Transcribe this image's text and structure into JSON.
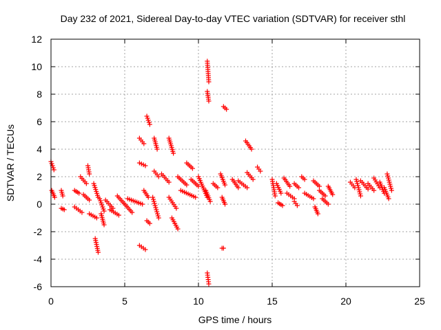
{
  "chart_data": {
    "type": "scatter",
    "title": "Day 232 of 2021, Sidereal Day-to-day VTEC variation (SDTVAR) for receiver sthl",
    "xlabel": "GPS time / hours",
    "ylabel": "SDTVAR / TECUs",
    "xlim": [
      0,
      25
    ],
    "ylim": [
      -6,
      12
    ],
    "xticks": [
      0,
      5,
      10,
      15,
      20,
      25
    ],
    "yticks": [
      -6,
      -4,
      -2,
      0,
      2,
      4,
      6,
      8,
      10,
      12
    ],
    "grid": true,
    "marker": "+",
    "color": "#ff0000",
    "segments": [
      [
        0.0,
        0.2,
        3.1,
        2.5
      ],
      [
        0.05,
        0.25,
        1.0,
        0.5
      ],
      [
        0.7,
        0.8,
        1.0,
        0.6
      ],
      [
        0.7,
        0.9,
        -0.3,
        -0.4
      ],
      [
        1.6,
        1.9,
        1.0,
        0.8
      ],
      [
        1.6,
        2.1,
        -0.2,
        -0.6
      ],
      [
        2.0,
        2.4,
        2.0,
        1.5
      ],
      [
        2.5,
        2.6,
        2.8,
        2.2
      ],
      [
        2.2,
        2.6,
        0.7,
        0.3
      ],
      [
        2.6,
        3.1,
        -0.7,
        -1.0
      ],
      [
        3.0,
        3.2,
        -2.5,
        -3.5
      ],
      [
        2.9,
        3.2,
        1.5,
        0.5
      ],
      [
        3.3,
        3.6,
        0.4,
        -0.5
      ],
      [
        3.4,
        3.6,
        -0.7,
        -1.5
      ],
      [
        3.7,
        4.2,
        0.3,
        -0.3
      ],
      [
        4.0,
        4.6,
        -0.4,
        -0.8
      ],
      [
        4.5,
        5.5,
        0.6,
        -0.6
      ],
      [
        5.2,
        6.2,
        0.4,
        0.0
      ],
      [
        6.0,
        6.3,
        4.8,
        4.4
      ],
      [
        6.0,
        6.4,
        3.0,
        2.8
      ],
      [
        6.0,
        6.4,
        -3.0,
        -3.3
      ],
      [
        6.3,
        6.6,
        1.0,
        0.5
      ],
      [
        6.5,
        6.7,
        6.4,
        5.8
      ],
      [
        6.5,
        6.7,
        -1.2,
        -1.4
      ],
      [
        7.0,
        7.2,
        4.8,
        4.0
      ],
      [
        7.0,
        7.3,
        2.4,
        2.0
      ],
      [
        6.9,
        7.3,
        0.5,
        -1.0
      ],
      [
        7.5,
        8.0,
        2.2,
        1.6
      ],
      [
        8.0,
        8.3,
        4.8,
        3.7
      ],
      [
        8.0,
        8.5,
        0.5,
        -0.3
      ],
      [
        8.2,
        8.6,
        -1.0,
        -1.8
      ],
      [
        8.6,
        9.2,
        2.0,
        1.4
      ],
      [
        9.2,
        9.6,
        3.0,
        2.6
      ],
      [
        8.8,
        9.8,
        1.0,
        0.5
      ],
      [
        9.5,
        10.0,
        1.8,
        1.3
      ],
      [
        10.0,
        10.6,
        2.0,
        0.5
      ],
      [
        10.6,
        10.7,
        10.4,
        8.9
      ],
      [
        10.6,
        10.7,
        8.2,
        7.5
      ],
      [
        10.6,
        10.7,
        -5.0,
        -5.8
      ],
      [
        10.5,
        10.8,
        1.0,
        0.2
      ],
      [
        11.0,
        11.3,
        1.5,
        1.2
      ],
      [
        11.5,
        11.8,
        2.2,
        1.4
      ],
      [
        11.6,
        11.8,
        0.5,
        0.0
      ],
      [
        11.7,
        11.9,
        7.1,
        6.9
      ],
      [
        11.6,
        11.7,
        -3.2,
        -3.2
      ],
      [
        12.3,
        12.7,
        1.8,
        1.2
      ],
      [
        12.7,
        13.3,
        1.7,
        1.2
      ],
      [
        13.2,
        13.6,
        4.6,
        4.0
      ],
      [
        13.3,
        13.7,
        2.3,
        1.8
      ],
      [
        14.0,
        14.2,
        2.7,
        2.4
      ],
      [
        15.0,
        15.2,
        1.8,
        0.6
      ],
      [
        15.3,
        15.6,
        1.5,
        0.8
      ],
      [
        15.4,
        15.7,
        0.1,
        -0.1
      ],
      [
        15.8,
        16.2,
        1.9,
        1.3
      ],
      [
        16.0,
        16.5,
        0.8,
        0.4
      ],
      [
        16.5,
        16.8,
        1.5,
        1.2
      ],
      [
        16.5,
        16.7,
        0.2,
        -0.1
      ],
      [
        17.0,
        17.2,
        2.0,
        1.8
      ],
      [
        17.2,
        17.8,
        0.8,
        0.4
      ],
      [
        17.8,
        18.2,
        1.7,
        1.3
      ],
      [
        17.9,
        18.1,
        -0.2,
        -0.7
      ],
      [
        18.2,
        18.6,
        1.0,
        0.6
      ],
      [
        18.4,
        18.8,
        0.4,
        0.0
      ],
      [
        18.8,
        19.1,
        1.3,
        0.7
      ],
      [
        20.3,
        20.6,
        1.6,
        1.2
      ],
      [
        20.7,
        21.0,
        1.8,
        0.6
      ],
      [
        21.0,
        21.5,
        1.7,
        1.1
      ],
      [
        21.5,
        21.9,
        1.5,
        1.0
      ],
      [
        21.9,
        22.3,
        1.9,
        1.2
      ],
      [
        22.3,
        22.6,
        1.6,
        0.8
      ],
      [
        22.6,
        22.9,
        1.2,
        0.4
      ],
      [
        22.8,
        23.1,
        2.2,
        1.0
      ]
    ]
  }
}
